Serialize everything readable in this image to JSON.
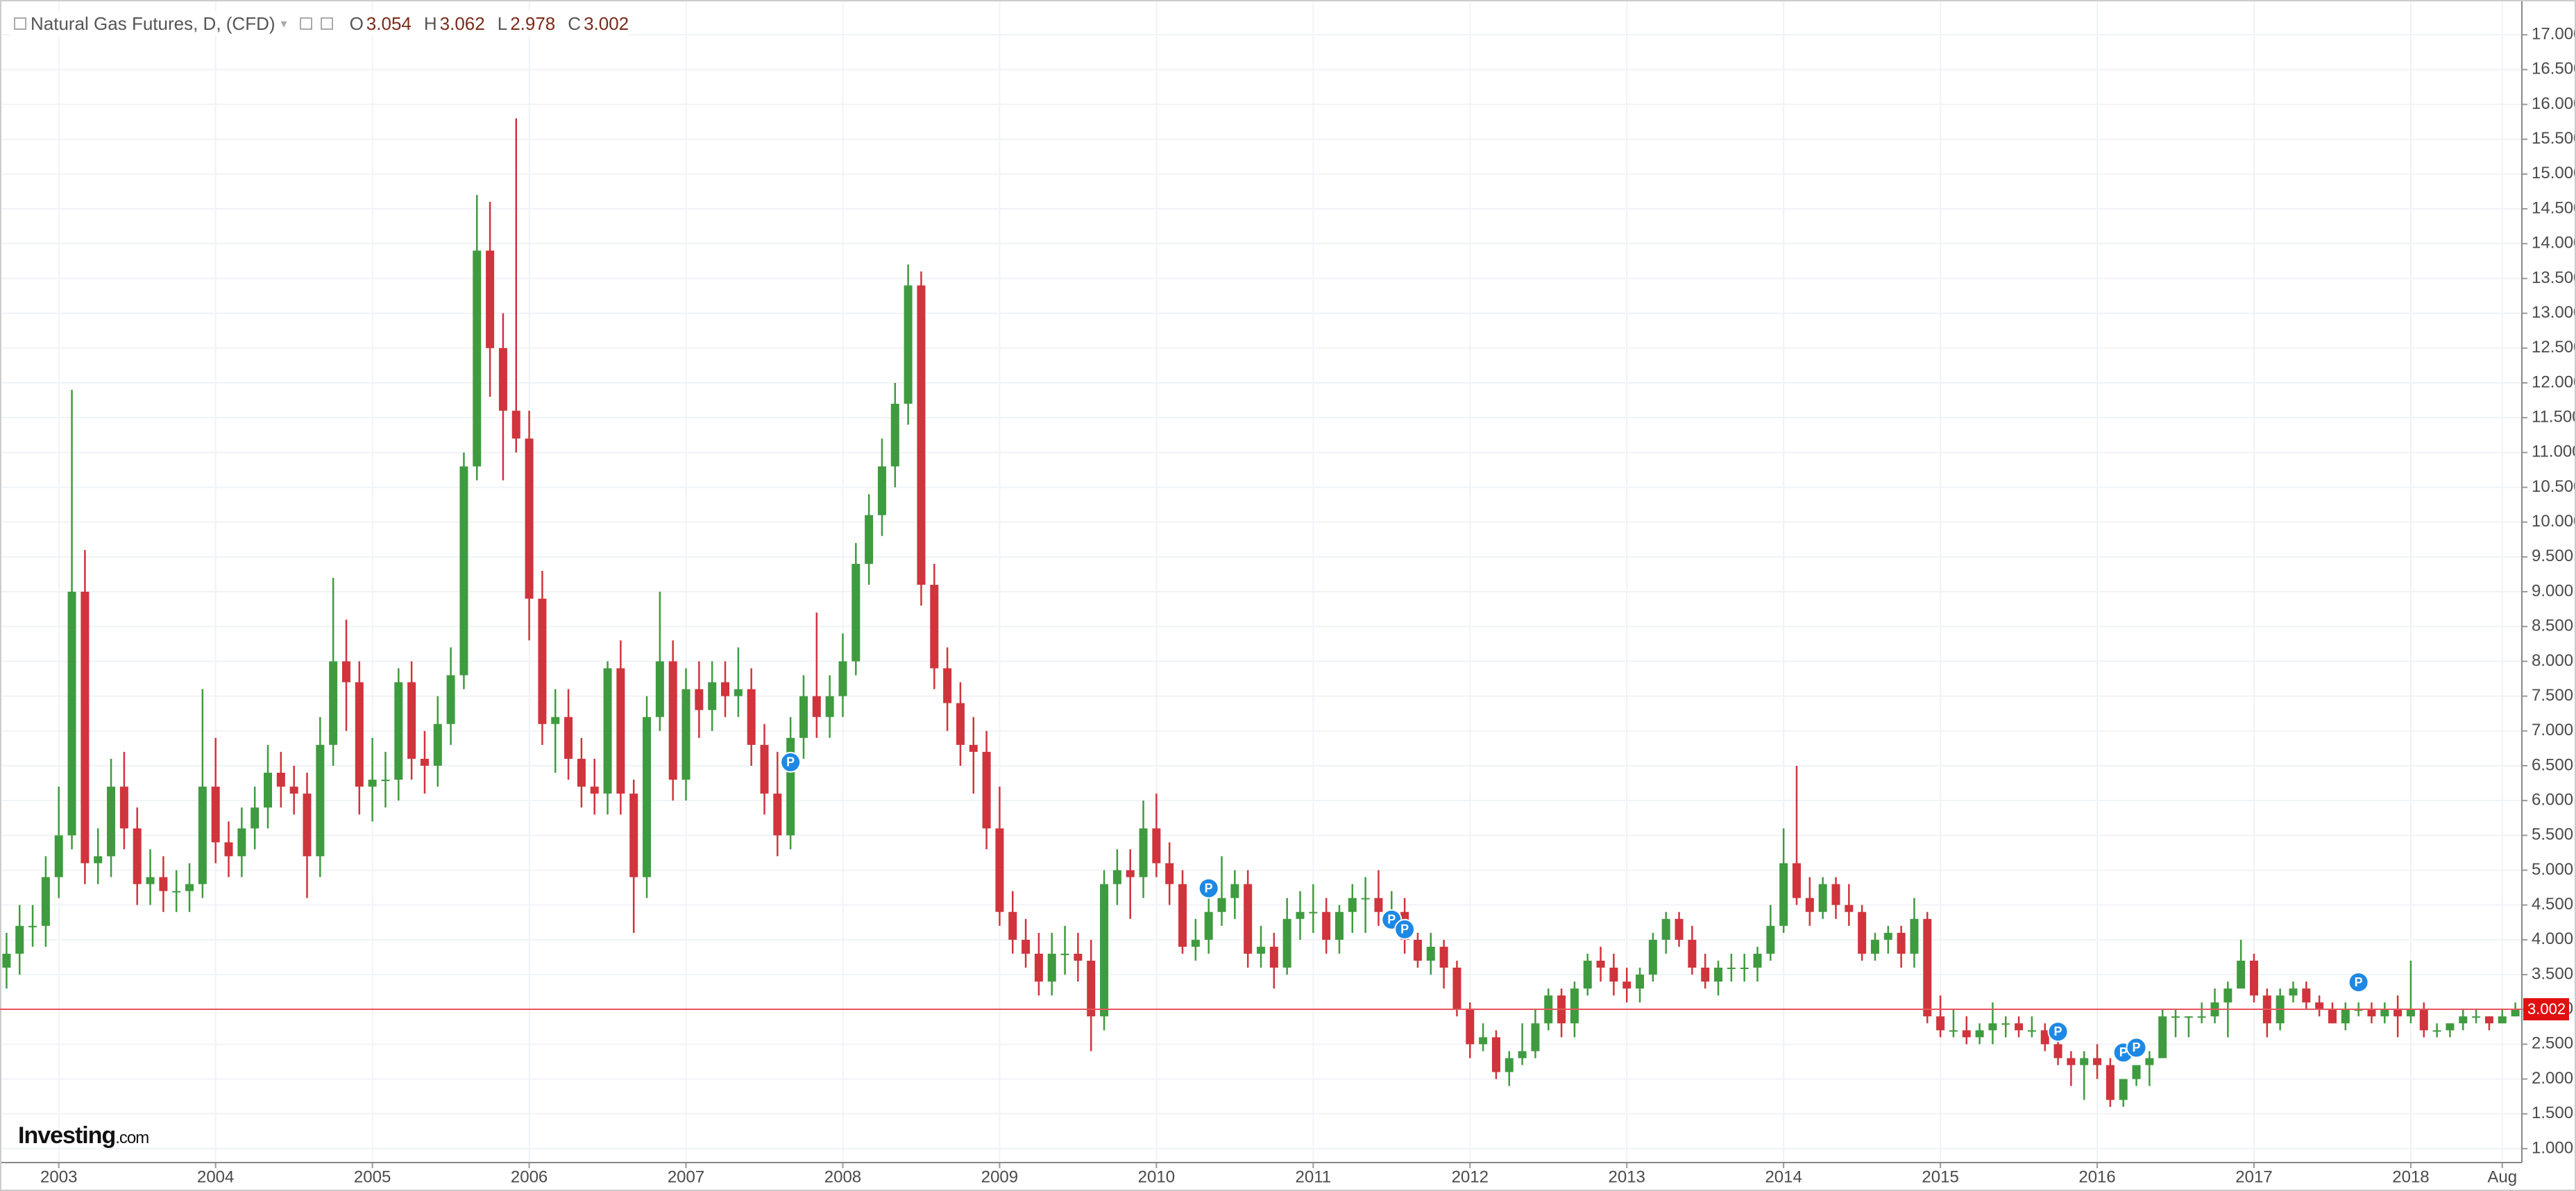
{
  "chart_data": {
    "type": "candlestick",
    "title": "Natural Gas Futures, D, (CFD)",
    "legend_values": [
      {
        "label": "O",
        "value": 3.054
      },
      {
        "label": "H",
        "value": 3.062
      },
      {
        "label": "L",
        "value": 2.978
      },
      {
        "label": "C",
        "value": 3.002
      }
    ],
    "logo": "Investing",
    "logo_suffix": ".com",
    "up_color": "#3f9b3f",
    "down_color": "#d0343c",
    "last_line_color": "#e8545c",
    "ylim": [
      0.8,
      17.5
    ],
    "yticks": [
      {
        "value": 1,
        "label": "1.000"
      },
      {
        "value": 1.5,
        "label": "1.500"
      },
      {
        "value": 2,
        "label": "2.000"
      },
      {
        "value": 2.5,
        "label": "2.500"
      },
      {
        "value": 3,
        "label": "3.000"
      },
      {
        "value": 3.5,
        "label": "3.500"
      },
      {
        "value": 4,
        "label": "4.000"
      },
      {
        "value": 4.5,
        "label": "4.500"
      },
      {
        "value": 5,
        "label": "5.000"
      },
      {
        "value": 5.5,
        "label": "5.500"
      },
      {
        "value": 6,
        "label": "6.000"
      },
      {
        "value": 6.5,
        "label": "6.500"
      },
      {
        "value": 7,
        "label": "7.000"
      },
      {
        "value": 7.5,
        "label": "7.500"
      },
      {
        "value": 8,
        "label": "8.000"
      },
      {
        "value": 8.5,
        "label": "8.500"
      },
      {
        "value": 9,
        "label": "9.000"
      },
      {
        "value": 9.5,
        "label": "9.500"
      },
      {
        "value": 10,
        "label": "10.000"
      },
      {
        "value": 10.5,
        "label": "10.500"
      },
      {
        "value": 11,
        "label": "11.000"
      },
      {
        "value": 11.5,
        "label": "11.500"
      },
      {
        "value": 12,
        "label": "12.000"
      },
      {
        "value": 12.5,
        "label": "12.500"
      },
      {
        "value": 13,
        "label": "13.000"
      },
      {
        "value": 13.5,
        "label": "13.500"
      },
      {
        "value": 14,
        "label": "14.000"
      },
      {
        "value": 14.5,
        "label": "14.500"
      },
      {
        "value": 15,
        "label": "15.000"
      },
      {
        "value": 15.5,
        "label": "15.500"
      },
      {
        "value": 16,
        "label": "16.000"
      },
      {
        "value": 16.5,
        "label": "16.500"
      },
      {
        "value": 17,
        "label": "17.000"
      }
    ],
    "grid": true,
    "categories": [
      null,
      null,
      null,
      null,
      "2003",
      null,
      null,
      null,
      null,
      null,
      null,
      null,
      null,
      null,
      null,
      null,
      "2004",
      null,
      null,
      null,
      null,
      null,
      null,
      null,
      null,
      null,
      null,
      null,
      "2005",
      null,
      null,
      null,
      null,
      null,
      null,
      null,
      null,
      null,
      null,
      null,
      "2006",
      null,
      null,
      null,
      null,
      null,
      null,
      null,
      null,
      null,
      null,
      null,
      "2007",
      null,
      null,
      null,
      null,
      null,
      null,
      null,
      null,
      null,
      null,
      null,
      "2008",
      null,
      null,
      null,
      null,
      null,
      null,
      null,
      null,
      null,
      null,
      null,
      "2009",
      null,
      null,
      null,
      null,
      null,
      null,
      null,
      null,
      null,
      null,
      null,
      "2010",
      null,
      null,
      null,
      null,
      null,
      null,
      null,
      null,
      null,
      null,
      null,
      "2011",
      null,
      null,
      null,
      null,
      null,
      null,
      null,
      null,
      null,
      null,
      null,
      "2012",
      null,
      null,
      null,
      null,
      null,
      null,
      null,
      null,
      null,
      null,
      null,
      "2013",
      null,
      null,
      null,
      null,
      null,
      null,
      null,
      null,
      null,
      null,
      null,
      "2014",
      null,
      null,
      null,
      null,
      null,
      null,
      null,
      null,
      null,
      null,
      null,
      "2015",
      null,
      null,
      null,
      null,
      null,
      null,
      null,
      null,
      null,
      null,
      null,
      "2016",
      null,
      null,
      null,
      null,
      null,
      null,
      null,
      null,
      null,
      null,
      null,
      "2017",
      null,
      null,
      null,
      null,
      null,
      null,
      null,
      null,
      null,
      null,
      null,
      "2018",
      null,
      null,
      null,
      null,
      null,
      null,
      "Aug",
      null
    ],
    "ohlc": [
      [
        3.6,
        4.1,
        3.3,
        3.8
      ],
      [
        3.8,
        4.5,
        3.5,
        4.2
      ],
      [
        4.2,
        4.5,
        3.9,
        4.2
      ],
      [
        4.2,
        5.2,
        3.9,
        4.9
      ],
      [
        4.9,
        6.2,
        4.6,
        5.5
      ],
      [
        5.5,
        11.9,
        5.3,
        9.0
      ],
      [
        9.0,
        9.6,
        4.8,
        5.1
      ],
      [
        5.1,
        5.6,
        4.8,
        5.2
      ],
      [
        5.2,
        6.6,
        4.9,
        6.2
      ],
      [
        6.2,
        6.7,
        5.3,
        5.6
      ],
      [
        5.6,
        5.9,
        4.5,
        4.8
      ],
      [
        4.8,
        5.3,
        4.5,
        4.9
      ],
      [
        4.9,
        5.2,
        4.4,
        4.7
      ],
      [
        4.7,
        5.0,
        4.4,
        4.7
      ],
      [
        4.7,
        5.1,
        4.4,
        4.8
      ],
      [
        4.8,
        7.6,
        4.6,
        6.2
      ],
      [
        6.2,
        6.9,
        5.1,
        5.4
      ],
      [
        5.4,
        5.7,
        4.9,
        5.2
      ],
      [
        5.2,
        5.9,
        4.9,
        5.6
      ],
      [
        5.6,
        6.2,
        5.3,
        5.9
      ],
      [
        5.9,
        6.8,
        5.6,
        6.4
      ],
      [
        6.4,
        6.7,
        5.9,
        6.2
      ],
      [
        6.2,
        6.5,
        5.8,
        6.1
      ],
      [
        6.1,
        6.4,
        4.6,
        5.2
      ],
      [
        5.2,
        7.2,
        4.9,
        6.8
      ],
      [
        6.8,
        9.2,
        6.5,
        8.0
      ],
      [
        8.0,
        8.6,
        7.0,
        7.7
      ],
      [
        7.7,
        8.0,
        5.8,
        6.2
      ],
      [
        6.2,
        6.9,
        5.7,
        6.3
      ],
      [
        6.3,
        6.7,
        5.9,
        6.3
      ],
      [
        6.3,
        7.9,
        6.0,
        7.7
      ],
      [
        7.7,
        8.0,
        6.3,
        6.6
      ],
      [
        6.6,
        7.0,
        6.1,
        6.5
      ],
      [
        6.5,
        7.5,
        6.2,
        7.1
      ],
      [
        7.1,
        8.2,
        6.8,
        7.8
      ],
      [
        7.8,
        11.0,
        7.6,
        10.8
      ],
      [
        10.8,
        14.7,
        10.6,
        13.9
      ],
      [
        13.9,
        14.6,
        11.8,
        12.5
      ],
      [
        12.5,
        13.0,
        10.6,
        11.6
      ],
      [
        11.6,
        15.8,
        11.0,
        11.2
      ],
      [
        11.2,
        11.6,
        8.3,
        8.9
      ],
      [
        8.9,
        9.3,
        6.8,
        7.1
      ],
      [
        7.1,
        7.6,
        6.4,
        7.2
      ],
      [
        7.2,
        7.6,
        6.3,
        6.6
      ],
      [
        6.6,
        6.9,
        5.9,
        6.2
      ],
      [
        6.2,
        6.6,
        5.8,
        6.1
      ],
      [
        6.1,
        8.0,
        5.8,
        7.9
      ],
      [
        7.9,
        8.3,
        5.8,
        6.1
      ],
      [
        6.1,
        6.3,
        4.1,
        4.9
      ],
      [
        4.9,
        7.5,
        4.6,
        7.2
      ],
      [
        7.2,
        9.0,
        7.0,
        8.0
      ],
      [
        8.0,
        8.3,
        6.0,
        6.3
      ],
      [
        6.3,
        7.9,
        6.0,
        7.6
      ],
      [
        7.6,
        8.0,
        6.9,
        7.3
      ],
      [
        7.3,
        8.0,
        7.0,
        7.7
      ],
      [
        7.7,
        8.0,
        7.2,
        7.5
      ],
      [
        7.5,
        8.2,
        7.2,
        7.6
      ],
      [
        7.6,
        7.9,
        6.5,
        6.8
      ],
      [
        6.8,
        7.1,
        5.8,
        6.1
      ],
      [
        6.1,
        6.7,
        5.2,
        5.5
      ],
      [
        5.5,
        7.2,
        5.3,
        6.9
      ],
      [
        6.9,
        7.8,
        6.6,
        7.5
      ],
      [
        7.5,
        8.7,
        6.9,
        7.2
      ],
      [
        7.2,
        7.8,
        6.9,
        7.5
      ],
      [
        7.5,
        8.4,
        7.2,
        8.0
      ],
      [
        8.0,
        9.7,
        7.8,
        9.4
      ],
      [
        9.4,
        10.4,
        9.1,
        10.1
      ],
      [
        10.1,
        11.2,
        9.8,
        10.8
      ],
      [
        10.8,
        12.0,
        10.5,
        11.7
      ],
      [
        11.7,
        13.7,
        11.4,
        13.4
      ],
      [
        13.4,
        13.6,
        8.8,
        9.1
      ],
      [
        9.1,
        9.4,
        7.6,
        7.9
      ],
      [
        7.9,
        8.2,
        7.0,
        7.4
      ],
      [
        7.4,
        7.7,
        6.5,
        6.8
      ],
      [
        6.8,
        7.2,
        6.1,
        6.7
      ],
      [
        6.7,
        7.0,
        5.3,
        5.6
      ],
      [
        5.6,
        6.2,
        4.2,
        4.4
      ],
      [
        4.4,
        4.7,
        3.8,
        4.0
      ],
      [
        4.0,
        4.3,
        3.6,
        3.8
      ],
      [
        3.8,
        4.1,
        3.2,
        3.4
      ],
      [
        3.4,
        4.1,
        3.2,
        3.8
      ],
      [
        3.8,
        4.2,
        3.5,
        3.8
      ],
      [
        3.8,
        4.1,
        3.4,
        3.7
      ],
      [
        3.7,
        4.0,
        2.4,
        2.9
      ],
      [
        2.9,
        5.0,
        2.7,
        4.8
      ],
      [
        4.8,
        5.3,
        4.5,
        5.0
      ],
      [
        5.0,
        5.3,
        4.3,
        4.9
      ],
      [
        4.9,
        6.0,
        4.6,
        5.6
      ],
      [
        5.6,
        6.1,
        4.9,
        5.1
      ],
      [
        5.1,
        5.4,
        4.5,
        4.8
      ],
      [
        4.8,
        5.0,
        3.8,
        3.9
      ],
      [
        3.9,
        4.3,
        3.7,
        4.0
      ],
      [
        4.0,
        4.7,
        3.8,
        4.4
      ],
      [
        4.4,
        5.2,
        4.2,
        4.6
      ],
      [
        4.6,
        5.0,
        4.3,
        4.8
      ],
      [
        4.8,
        5.0,
        3.6,
        3.8
      ],
      [
        3.8,
        4.2,
        3.6,
        3.9
      ],
      [
        3.9,
        4.1,
        3.3,
        3.6
      ],
      [
        3.6,
        4.6,
        3.5,
        4.3
      ],
      [
        4.3,
        4.7,
        4.0,
        4.4
      ],
      [
        4.4,
        4.8,
        4.1,
        4.4
      ],
      [
        4.4,
        4.6,
        3.8,
        4.0
      ],
      [
        4.0,
        4.5,
        3.8,
        4.4
      ],
      [
        4.4,
        4.8,
        4.1,
        4.6
      ],
      [
        4.6,
        4.9,
        4.1,
        4.6
      ],
      [
        4.6,
        5.0,
        4.2,
        4.4
      ],
      [
        4.4,
        4.7,
        4.2,
        4.4
      ],
      [
        4.4,
        4.6,
        3.8,
        4.0
      ],
      [
        4.0,
        4.1,
        3.6,
        3.7
      ],
      [
        3.7,
        4.1,
        3.5,
        3.9
      ],
      [
        3.9,
        4.0,
        3.3,
        3.6
      ],
      [
        3.6,
        3.7,
        2.9,
        3.0
      ],
      [
        3.0,
        3.1,
        2.3,
        2.5
      ],
      [
        2.5,
        2.8,
        2.4,
        2.6
      ],
      [
        2.6,
        2.7,
        2.0,
        2.1
      ],
      [
        2.1,
        2.4,
        1.9,
        2.3
      ],
      [
        2.3,
        2.8,
        2.2,
        2.4
      ],
      [
        2.4,
        3.0,
        2.3,
        2.8
      ],
      [
        2.8,
        3.3,
        2.7,
        3.2
      ],
      [
        3.2,
        3.3,
        2.6,
        2.8
      ],
      [
        2.8,
        3.4,
        2.6,
        3.3
      ],
      [
        3.3,
        3.8,
        3.2,
        3.7
      ],
      [
        3.7,
        3.9,
        3.4,
        3.6
      ],
      [
        3.6,
        3.8,
        3.2,
        3.4
      ],
      [
        3.4,
        3.6,
        3.1,
        3.3
      ],
      [
        3.3,
        3.6,
        3.1,
        3.5
      ],
      [
        3.5,
        4.1,
        3.4,
        4.0
      ],
      [
        4.0,
        4.4,
        3.8,
        4.3
      ],
      [
        4.3,
        4.4,
        3.9,
        4.0
      ],
      [
        4.0,
        4.2,
        3.5,
        3.6
      ],
      [
        3.6,
        3.8,
        3.3,
        3.4
      ],
      [
        3.4,
        3.7,
        3.2,
        3.6
      ],
      [
        3.6,
        3.8,
        3.4,
        3.6
      ],
      [
        3.6,
        3.8,
        3.4,
        3.6
      ],
      [
        3.6,
        3.9,
        3.4,
        3.8
      ],
      [
        3.8,
        4.5,
        3.7,
        4.2
      ],
      [
        4.2,
        5.6,
        4.1,
        5.1
      ],
      [
        5.1,
        6.5,
        4.5,
        4.6
      ],
      [
        4.6,
        4.9,
        4.2,
        4.4
      ],
      [
        4.4,
        4.9,
        4.3,
        4.8
      ],
      [
        4.8,
        4.9,
        4.3,
        4.5
      ],
      [
        4.5,
        4.8,
        4.2,
        4.4
      ],
      [
        4.4,
        4.5,
        3.7,
        3.8
      ],
      [
        3.8,
        4.1,
        3.7,
        4.0
      ],
      [
        4.0,
        4.2,
        3.8,
        4.1
      ],
      [
        4.1,
        4.2,
        3.6,
        3.8
      ],
      [
        3.8,
        4.6,
        3.6,
        4.3
      ],
      [
        4.3,
        4.4,
        2.8,
        2.9
      ],
      [
        2.9,
        3.2,
        2.6,
        2.7
      ],
      [
        2.7,
        3.0,
        2.6,
        2.7
      ],
      [
        2.7,
        2.9,
        2.5,
        2.6
      ],
      [
        2.6,
        2.8,
        2.5,
        2.7
      ],
      [
        2.7,
        3.1,
        2.5,
        2.8
      ],
      [
        2.8,
        2.9,
        2.6,
        2.8
      ],
      [
        2.8,
        2.9,
        2.6,
        2.7
      ],
      [
        2.7,
        2.9,
        2.6,
        2.7
      ],
      [
        2.7,
        2.8,
        2.4,
        2.5
      ],
      [
        2.5,
        2.6,
        2.2,
        2.3
      ],
      [
        2.3,
        2.4,
        1.9,
        2.2
      ],
      [
        2.2,
        2.4,
        1.7,
        2.3
      ],
      [
        2.3,
        2.5,
        2.0,
        2.2
      ],
      [
        2.2,
        2.3,
        1.6,
        1.7
      ],
      [
        1.7,
        2.0,
        1.6,
        2.0
      ],
      [
        2.0,
        2.2,
        1.9,
        2.2
      ],
      [
        2.2,
        2.4,
        1.9,
        2.3
      ],
      [
        2.3,
        3.0,
        2.3,
        2.9
      ],
      [
        2.9,
        3.0,
        2.6,
        2.9
      ],
      [
        2.9,
        2.9,
        2.6,
        2.9
      ],
      [
        2.9,
        3.1,
        2.8,
        2.9
      ],
      [
        2.9,
        3.3,
        2.8,
        3.1
      ],
      [
        3.1,
        3.4,
        2.6,
        3.3
      ],
      [
        3.3,
        4.0,
        3.3,
        3.7
      ],
      [
        3.7,
        3.8,
        3.1,
        3.2
      ],
      [
        3.2,
        3.3,
        2.6,
        2.8
      ],
      [
        2.8,
        3.3,
        2.7,
        3.2
      ],
      [
        3.2,
        3.4,
        3.1,
        3.3
      ],
      [
        3.3,
        3.4,
        3.0,
        3.1
      ],
      [
        3.1,
        3.2,
        2.9,
        3.0
      ],
      [
        3.0,
        3.1,
        2.8,
        2.8
      ],
      [
        2.8,
        3.1,
        2.7,
        3.0
      ],
      [
        3.0,
        3.1,
        2.9,
        3.0
      ],
      [
        3.0,
        3.1,
        2.8,
        2.9
      ],
      [
        2.9,
        3.1,
        2.8,
        3.0
      ],
      [
        3.0,
        3.2,
        2.6,
        2.9
      ],
      [
        2.9,
        3.7,
        2.8,
        3.0
      ],
      [
        3.0,
        3.1,
        2.6,
        2.7
      ],
      [
        2.7,
        2.8,
        2.6,
        2.7
      ],
      [
        2.7,
        2.8,
        2.6,
        2.8
      ],
      [
        2.8,
        3.0,
        2.7,
        2.9
      ],
      [
        2.9,
        3.0,
        2.8,
        2.9
      ],
      [
        2.9,
        2.9,
        2.7,
        2.8
      ],
      [
        2.8,
        3.0,
        2.8,
        2.9
      ],
      [
        2.9,
        3.1,
        2.9,
        3.0
      ]
    ],
    "events": [
      {
        "label": "P",
        "category": 60,
        "value": 6.55
      },
      {
        "label": "P",
        "category": 92,
        "value": 4.74
      },
      {
        "label": "P",
        "category": 106,
        "value": 4.29
      },
      {
        "label": "P",
        "category": 107,
        "value": 4.15
      },
      {
        "label": "P",
        "category": 157,
        "value": 2.68
      },
      {
        "label": "P",
        "category": 162,
        "value": 2.38
      },
      {
        "label": "P",
        "category": 163,
        "value": 2.45
      },
      {
        "label": "P",
        "category": 180,
        "value": 3.39
      }
    ]
  }
}
